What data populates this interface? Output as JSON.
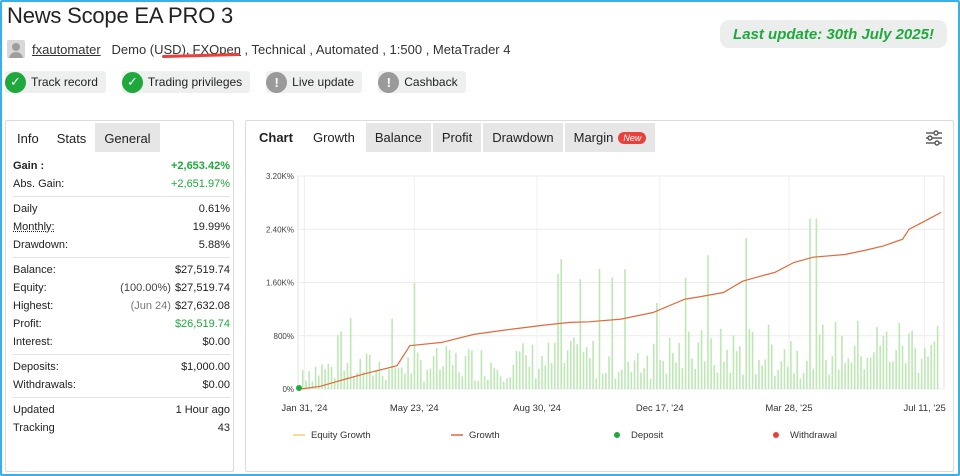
{
  "header": {
    "title": "News Scope EA PRO 3",
    "last_update": "Last update: 30th July 2025!"
  },
  "meta": {
    "user": "fxautomater",
    "account": "Demo (USD),",
    "broker": "FXOpen",
    "rest": " , Technical , Automated , 1:500 , MetaTrader 4"
  },
  "checks": [
    {
      "label": "Track record",
      "status": "ok",
      "icon": "check-icon"
    },
    {
      "label": "Trading privileges",
      "status": "ok",
      "icon": "check-icon"
    },
    {
      "label": "Live update",
      "status": "no",
      "icon": "exclamation-icon"
    },
    {
      "label": "Cashback",
      "status": "no",
      "icon": "exclamation-icon"
    }
  ],
  "left_tabs": [
    "Info",
    "Stats",
    "General"
  ],
  "stats": {
    "gain_label": "Gain :",
    "gain": "+2,653.42%",
    "abs_gain_label": "Abs. Gain:",
    "abs_gain": "+2,651.97%",
    "daily_label": "Daily",
    "daily": "0.61%",
    "monthly_label": "Monthly:",
    "monthly": "19.99%",
    "drawdown_label": "Drawdown:",
    "drawdown": "5.88%",
    "balance_label": "Balance:",
    "balance": "$27,519.74",
    "equity_label": "Equity:",
    "equity_pct": "(100.00%)",
    "equity": "$27,519.74",
    "highest_label": "Highest:",
    "highest_date": "(Jun 24)",
    "highest": "$27,632.08",
    "profit_label": "Profit:",
    "profit": "$26,519.74",
    "interest_label": "Interest:",
    "interest": "$0.00",
    "deposits_label": "Deposits:",
    "deposits": "$1,000.00",
    "withdrawals_label": "Withdrawals:",
    "withdrawals": "$0.00",
    "updated_label": "Updated",
    "updated": "1 Hour ago",
    "tracking_label": "Tracking",
    "tracking": "43"
  },
  "right_tabs": {
    "chart": "Chart",
    "growth": "Growth",
    "balance": "Balance",
    "profit": "Profit",
    "drawdown": "Drawdown",
    "margin": "Margin",
    "new_badge": "New"
  },
  "colors": {
    "green": "#1fa93c",
    "accent_red": "#e8413c",
    "growth_line": "#e06a3b",
    "bars": "#bde8b4"
  },
  "chart_data": {
    "type": "line",
    "y_ticks": [
      "0%",
      "800%",
      "1.60K%",
      "2.40K%",
      "3.20K%"
    ],
    "x_ticks": [
      "Jan 31, '24",
      "May 23, '24",
      "Aug 30, '24",
      "Dec 17, '24",
      "Mar 28, '25",
      "Jul 11, '25"
    ],
    "ylim": [
      0,
      3200
    ],
    "legend": [
      "Equity Growth",
      "Growth",
      "Deposit",
      "Withdrawal"
    ],
    "series": [
      {
        "name": "Growth",
        "points": [
          [
            0,
            0
          ],
          [
            0.03,
            40
          ],
          [
            0.07,
            150
          ],
          [
            0.1,
            230
          ],
          [
            0.15,
            350
          ],
          [
            0.17,
            650
          ],
          [
            0.22,
            700
          ],
          [
            0.27,
            820
          ],
          [
            0.33,
            900
          ],
          [
            0.38,
            960
          ],
          [
            0.42,
            1000
          ],
          [
            0.45,
            1010
          ],
          [
            0.5,
            1050
          ],
          [
            0.55,
            1150
          ],
          [
            0.6,
            1350
          ],
          [
            0.62,
            1380
          ],
          [
            0.66,
            1450
          ],
          [
            0.69,
            1620
          ],
          [
            0.72,
            1700
          ],
          [
            0.74,
            1750
          ],
          [
            0.77,
            1900
          ],
          [
            0.8,
            1980
          ],
          [
            0.85,
            2020
          ],
          [
            0.88,
            2080
          ],
          [
            0.91,
            2150
          ],
          [
            0.94,
            2250
          ],
          [
            0.95,
            2400
          ],
          [
            0.98,
            2550
          ],
          [
            1,
            2653
          ]
        ]
      }
    ],
    "bar_series": "daily trades (green bars, unlabeled magnitudes)"
  }
}
